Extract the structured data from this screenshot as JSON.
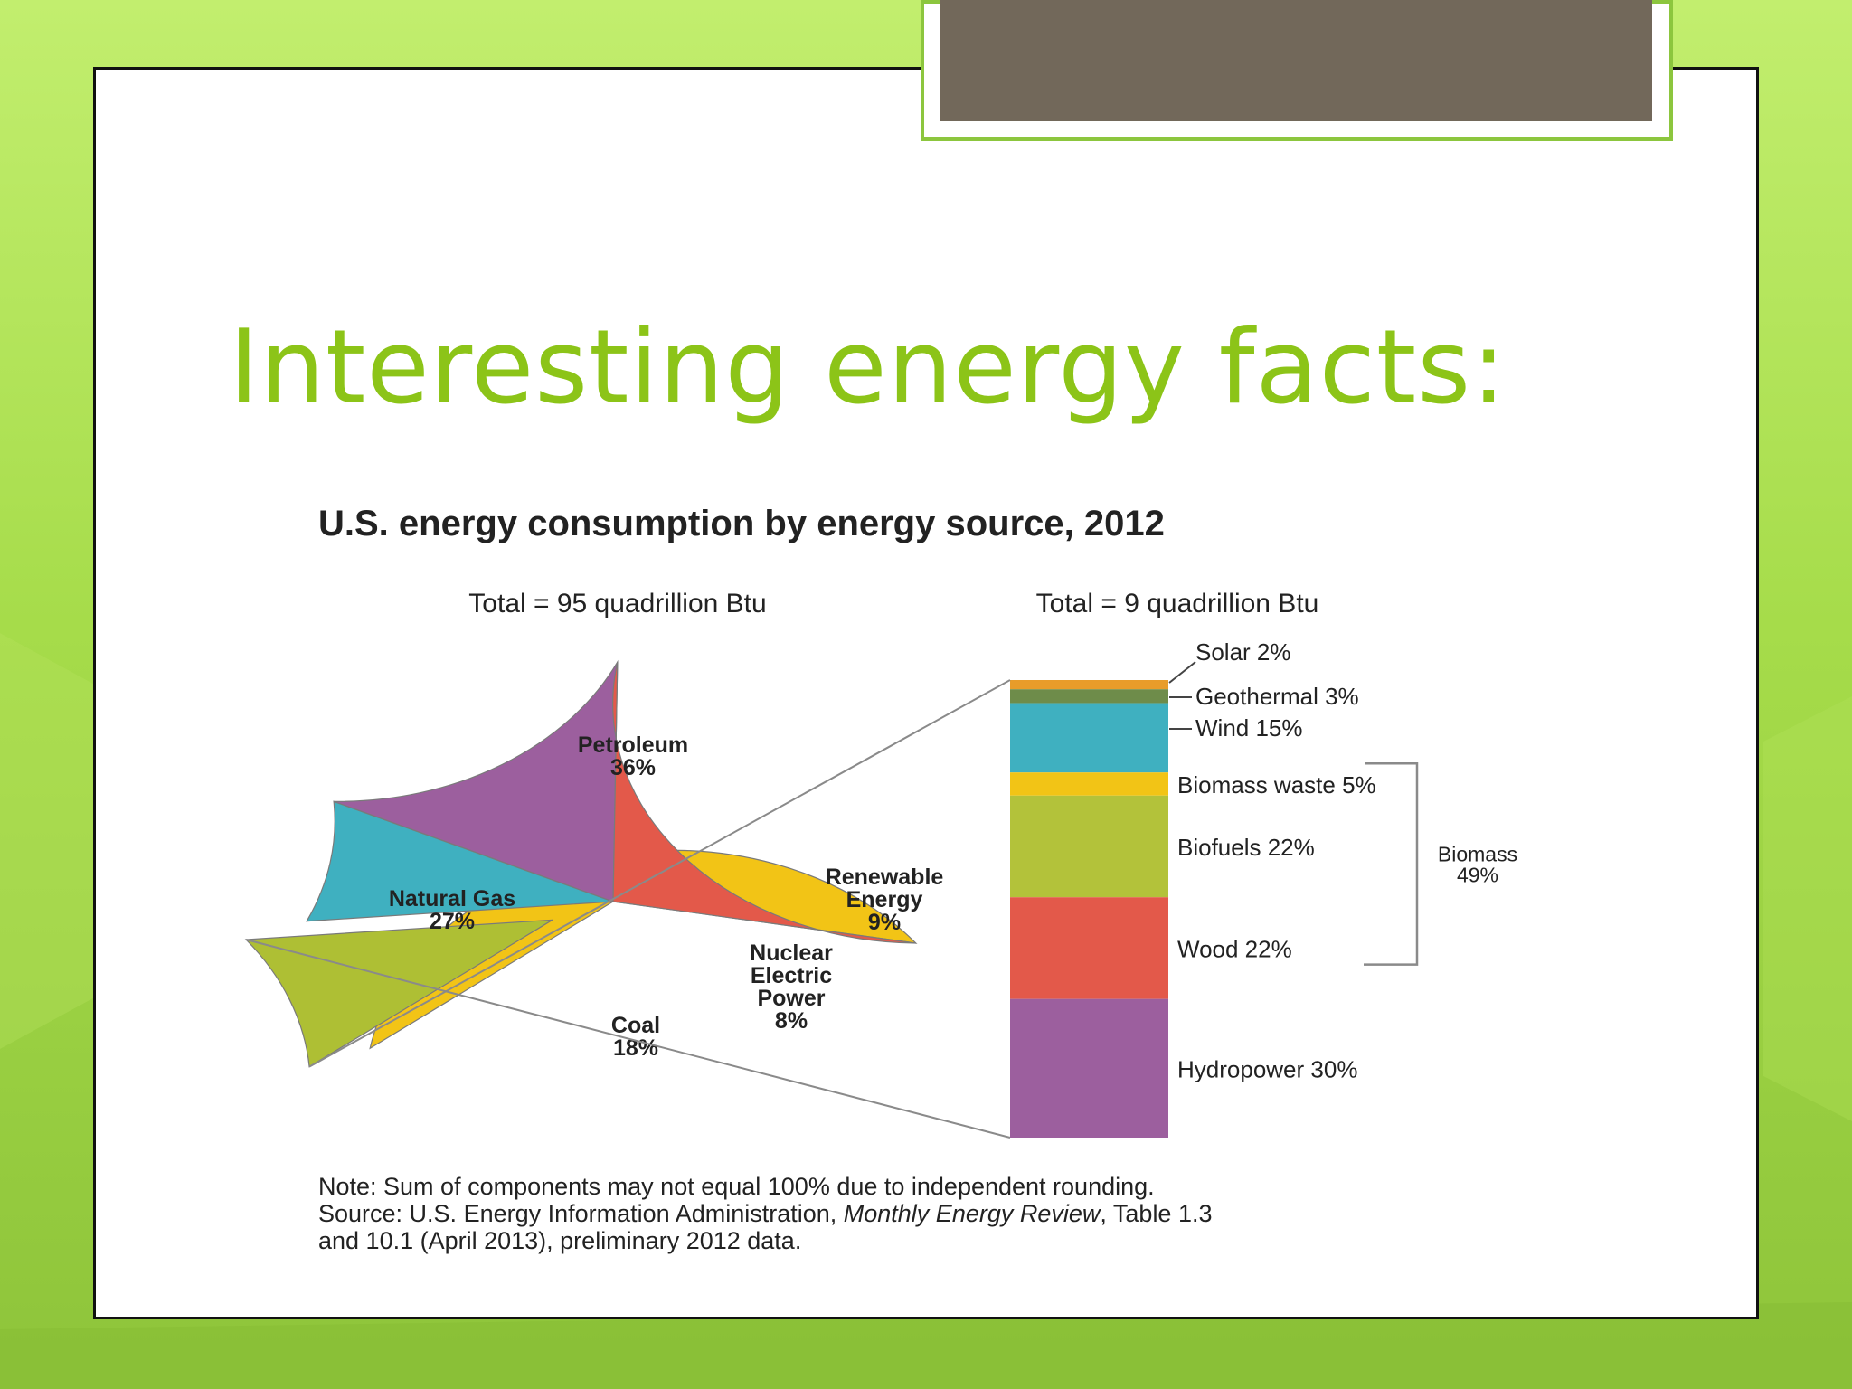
{
  "slide": {
    "title": "Interesting energy facts:",
    "title_color": "#8cc418",
    "title_block_color": "#72685a",
    "frame_color": "#8cc63e"
  },
  "chart_data": {
    "type": "pie",
    "title": "U.S. energy consumption by energy source, 2012",
    "pie": {
      "total_label": "Total = 95 quadrillion Btu",
      "slices": [
        {
          "id": "petroleum",
          "label": "Petroleum",
          "value": 36,
          "value_label": "36%",
          "color": "#f2c416"
        },
        {
          "id": "renewable",
          "label": "Renewable Energy",
          "label_lines": [
            "Renewable",
            "Energy"
          ],
          "value": 9,
          "value_label": "9%",
          "color": "#aebf34",
          "exploded": true
        },
        {
          "id": "nuclear",
          "label": "Nuclear Electric Power",
          "label_lines": [
            "Nuclear",
            "Electric",
            "Power"
          ],
          "value": 8,
          "value_label": "8%",
          "color": "#3fb0c0"
        },
        {
          "id": "coal",
          "label": "Coal",
          "value": 18,
          "value_label": "18%",
          "color": "#9c5f9e"
        },
        {
          "id": "natural_gas",
          "label": "Natural Gas",
          "value": 27,
          "value_label": "27%",
          "color": "#e3594a"
        }
      ]
    },
    "breakdown": {
      "type": "stacked-bar",
      "total_label": "Total = 9 quadrillion Btu",
      "segments": [
        {
          "id": "solar",
          "label": "Solar 2%",
          "value": 2,
          "color": "#e89c2a"
        },
        {
          "id": "geothermal",
          "label": "Geothermal 3%",
          "value": 3,
          "color": "#6e8c4a"
        },
        {
          "id": "wind",
          "label": "Wind 15%",
          "value": 15,
          "color": "#3fb0c0"
        },
        {
          "id": "biomass_waste",
          "label": "Biomass waste 5%",
          "value": 5,
          "color": "#f2c416"
        },
        {
          "id": "biofuels",
          "label": "Biofuels 22%",
          "value": 22,
          "color": "#b3c23a"
        },
        {
          "id": "wood",
          "label": "Wood 22%",
          "value": 22,
          "color": "#e3594a"
        },
        {
          "id": "hydropower",
          "label": "Hydropower 30%",
          "value": 30,
          "color": "#9c5f9e"
        }
      ],
      "group": {
        "label": "Biomass",
        "value_label": "49%",
        "members": [
          "biomass_waste",
          "biofuels",
          "wood"
        ]
      }
    },
    "notes": [
      "Note: Sum of components may not equal 100% due to independent rounding.",
      "Source: U.S. Energy Information Administration, ",
      "Monthly Energy Review",
      ", Table 1.3",
      "and 10.1 (April 2013), preliminary 2012 data."
    ]
  }
}
